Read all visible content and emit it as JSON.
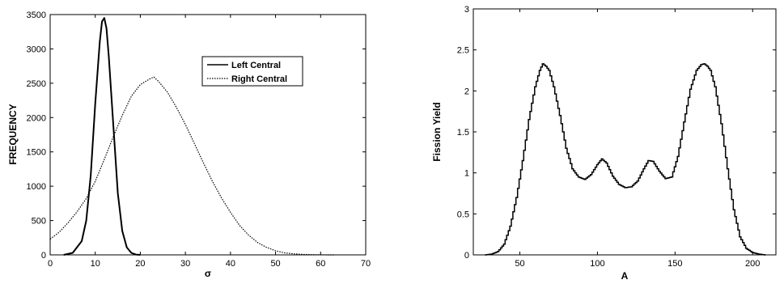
{
  "chart_data": [
    {
      "type": "line",
      "xlabel": "σ",
      "ylabel": "FREQUENCY",
      "xlim": [
        0,
        70
      ],
      "ylim": [
        0,
        3500
      ],
      "xticks": [
        0,
        10,
        20,
        30,
        40,
        50,
        60,
        70
      ],
      "yticks": [
        0,
        500,
        1000,
        1500,
        2000,
        2500,
        3000,
        3500
      ],
      "grid": false,
      "legend_position": "upper-right",
      "series": [
        {
          "name": "Left Central",
          "style": "solid",
          "color": "#000000",
          "x": [
            3,
            5,
            7,
            8,
            9,
            10,
            11,
            11.5,
            12,
            12.5,
            13,
            14,
            15,
            16,
            17,
            18,
            19,
            20
          ],
          "y": [
            0,
            30,
            200,
            500,
            1150,
            2200,
            3100,
            3400,
            3450,
            3300,
            2900,
            1900,
            900,
            350,
            110,
            30,
            5,
            0
          ]
        },
        {
          "name": "Right Central",
          "style": "dotted",
          "color": "#000000",
          "x": [
            0,
            2,
            4,
            6,
            8,
            10,
            12,
            14,
            16,
            18,
            20,
            22,
            23,
            24,
            26,
            28,
            30,
            32,
            34,
            36,
            38,
            40,
            42,
            44,
            46,
            48,
            50,
            52,
            54,
            56,
            58,
            60,
            62,
            63
          ],
          "y": [
            230,
            330,
            470,
            630,
            820,
            1070,
            1390,
            1720,
            2030,
            2310,
            2480,
            2560,
            2590,
            2530,
            2370,
            2150,
            1900,
            1620,
            1340,
            1070,
            830,
            620,
            430,
            290,
            180,
            110,
            60,
            30,
            15,
            7,
            3,
            1,
            0,
            0
          ]
        }
      ]
    },
    {
      "type": "line",
      "xlabel": "A",
      "ylabel": "Fission Yield",
      "xlim": [
        20,
        215
      ],
      "ylim": [
        0,
        3
      ],
      "xticks": [
        50,
        100,
        150,
        200
      ],
      "yticks": [
        0,
        0.5,
        1,
        1.5,
        2,
        2.5,
        3
      ],
      "grid": false,
      "series": [
        {
          "style": "step",
          "color": "#000000",
          "x": [
            28,
            32,
            36,
            40,
            44,
            48,
            52,
            56,
            60,
            63,
            65,
            67,
            69,
            72,
            76,
            80,
            84,
            88,
            92,
            96,
            100,
            103,
            106,
            110,
            114,
            118,
            122,
            126,
            130,
            133,
            136,
            140,
            144,
            148,
            152,
            156,
            160,
            164,
            167,
            169,
            171,
            173,
            176,
            180,
            184,
            188,
            192,
            196,
            200,
            204,
            208
          ],
          "y": [
            0.0,
            0.01,
            0.04,
            0.13,
            0.35,
            0.7,
            1.15,
            1.65,
            2.05,
            2.25,
            2.33,
            2.3,
            2.25,
            2.05,
            1.7,
            1.3,
            1.05,
            0.95,
            0.92,
            0.98,
            1.1,
            1.17,
            1.12,
            0.96,
            0.86,
            0.82,
            0.83,
            0.9,
            1.05,
            1.15,
            1.14,
            1.02,
            0.93,
            0.95,
            1.2,
            1.62,
            2.02,
            2.25,
            2.32,
            2.33,
            2.3,
            2.25,
            2.05,
            1.6,
            1.05,
            0.55,
            0.22,
            0.08,
            0.03,
            0.01,
            0.0
          ]
        }
      ]
    }
  ]
}
